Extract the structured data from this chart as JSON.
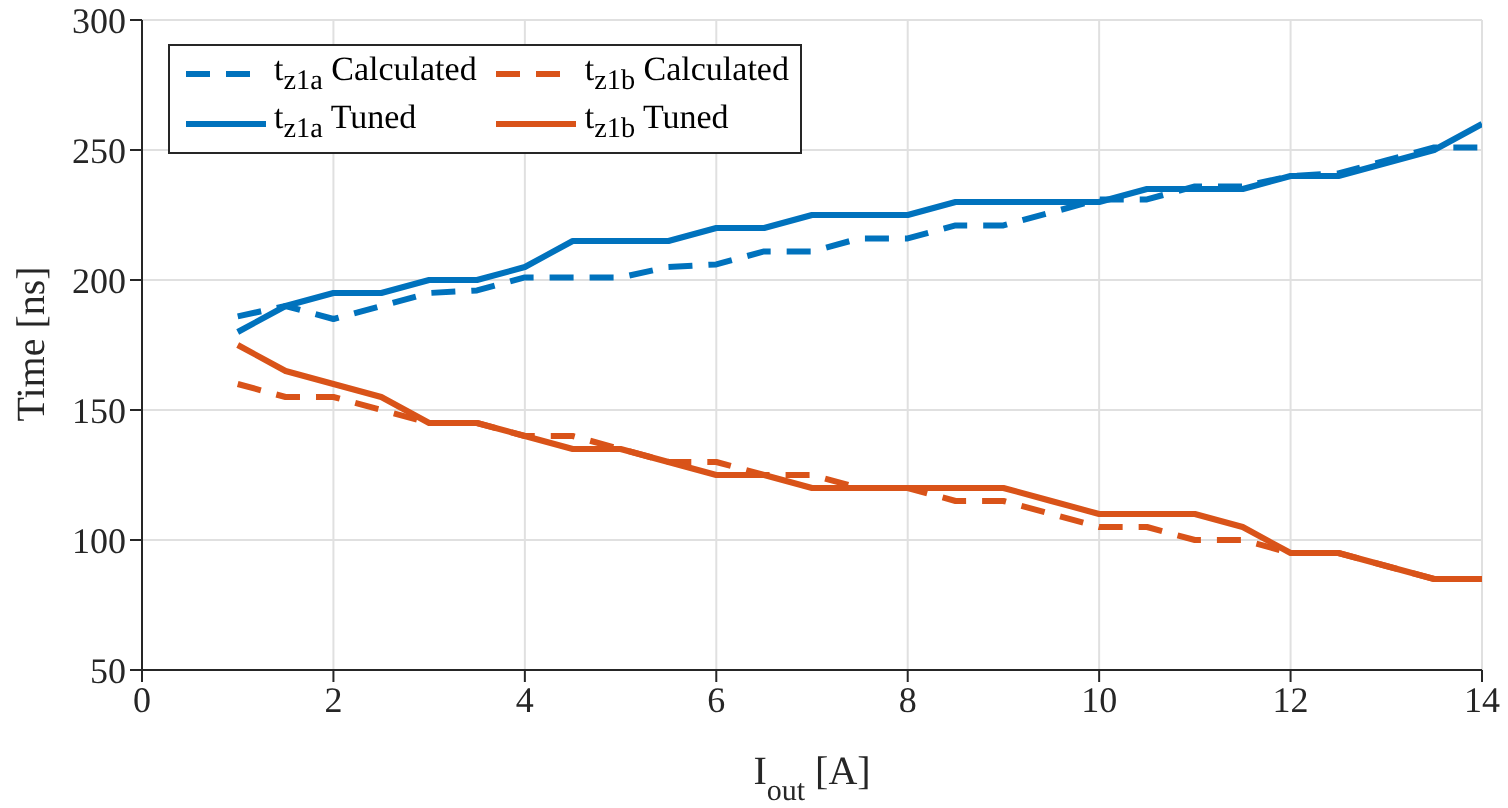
{
  "chart_data": {
    "type": "line",
    "xlabel": "I$_{out}$ [A]",
    "ylabel": "Time [ns]",
    "x": [
      1,
      1.5,
      2,
      2.5,
      3,
      3.5,
      4,
      4.5,
      5,
      5.5,
      6,
      6.5,
      7,
      7.5,
      8,
      8.5,
      9,
      9.5,
      10,
      10.5,
      11,
      11.5,
      12,
      12.5,
      13,
      13.5,
      14
    ],
    "series": [
      {
        "name": "t$_{z1a}$ Calculated",
        "color": "#0072bd",
        "line_style": "dashed",
        "values": [
          186,
          190,
          185,
          190,
          195,
          196,
          201,
          201,
          201,
          205,
          206,
          211,
          211,
          216,
          216,
          221,
          221,
          226,
          231,
          231,
          236,
          236,
          240,
          241,
          246,
          251,
          251
        ]
      },
      {
        "name": "t$_{z1b}$ Calculated",
        "color": "#d95319",
        "line_style": "dashed",
        "values": [
          160,
          155,
          155,
          150,
          145,
          145,
          140,
          140,
          135,
          130,
          130,
          125,
          125,
          120,
          120,
          115,
          115,
          110,
          105,
          105,
          100,
          100,
          95,
          95,
          90,
          85,
          85
        ]
      },
      {
        "name": "t$_{z1a}$ Tuned",
        "color": "#0072bd",
        "line_style": "solid",
        "values": [
          180,
          190,
          195,
          195,
          200,
          200,
          205,
          215,
          215,
          215,
          220,
          220,
          225,
          225,
          225,
          230,
          230,
          230,
          230,
          235,
          235,
          235,
          240,
          240,
          245,
          250,
          260
        ]
      },
      {
        "name": "t$_{z1b}$ Tuned",
        "color": "#d95319",
        "line_style": "solid",
        "values": [
          175,
          165,
          160,
          155,
          145,
          145,
          140,
          135,
          135,
          130,
          125,
          125,
          120,
          120,
          120,
          120,
          120,
          115,
          110,
          110,
          110,
          105,
          95,
          95,
          90,
          85,
          85
        ]
      }
    ],
    "xlim": [
      0,
      14
    ],
    "xticks": [
      0,
      2,
      4,
      6,
      8,
      10,
      12,
      14
    ],
    "ylim": [
      50,
      300
    ],
    "yticks": [
      50,
      100,
      150,
      200,
      250,
      300
    ],
    "grid": true,
    "legend": "top left",
    "marker": "none"
  }
}
